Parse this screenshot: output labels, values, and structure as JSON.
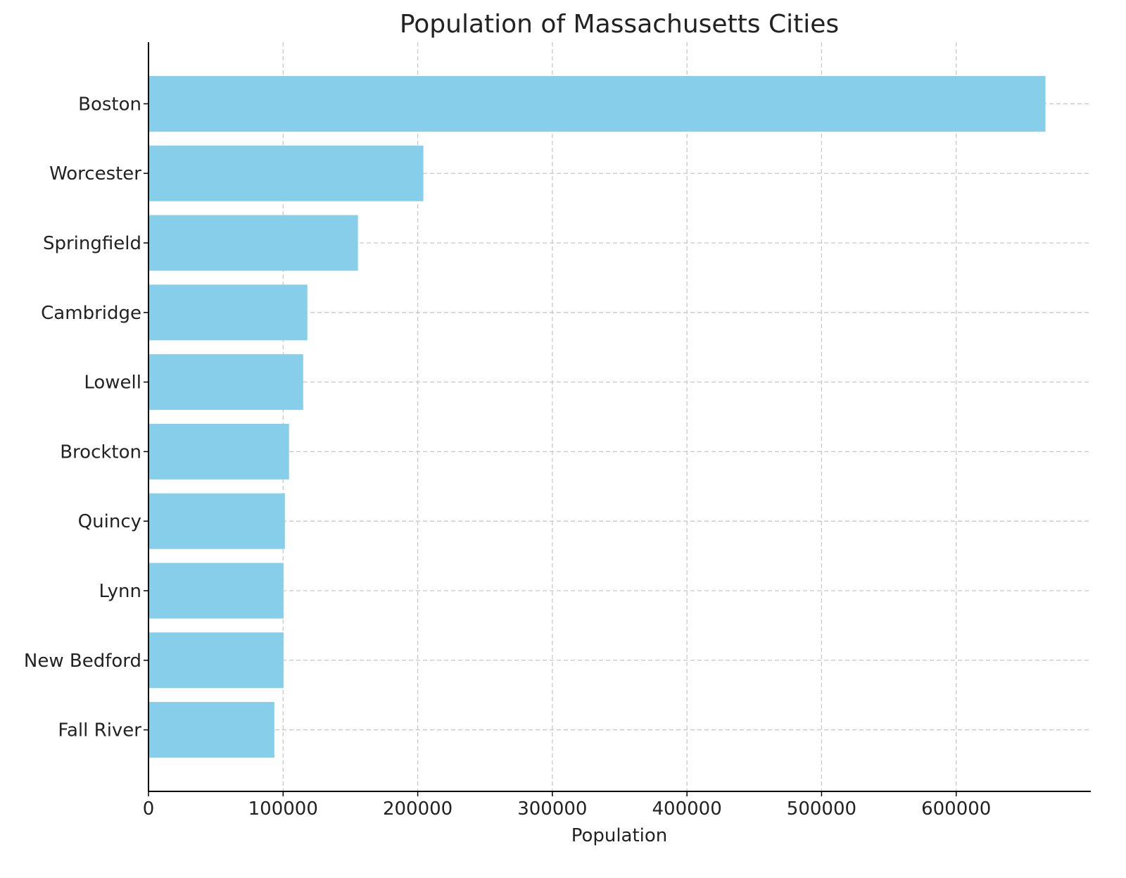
{
  "chart_data": {
    "type": "bar",
    "orientation": "horizontal",
    "title": "Population of Massachusetts Cities",
    "xlabel": "Population",
    "ylabel": "",
    "categories": [
      "Boston",
      "Worcester",
      "Springfield",
      "Cambridge",
      "Lowell",
      "Brockton",
      "Quincy",
      "Lynn",
      "New Bedford",
      "Fall River"
    ],
    "values": [
      666300,
      204200,
      155600,
      118000,
      114900,
      104400,
      101300,
      100300,
      100300,
      93500
    ],
    "xlim": [
      0,
      700000
    ],
    "xticks": [
      "0",
      "100000",
      "200000",
      "300000",
      "400000",
      "500000",
      "600000"
    ],
    "grid": true,
    "grid_style": "dashed",
    "bar_color": "#87ceeb",
    "legend": "none"
  }
}
